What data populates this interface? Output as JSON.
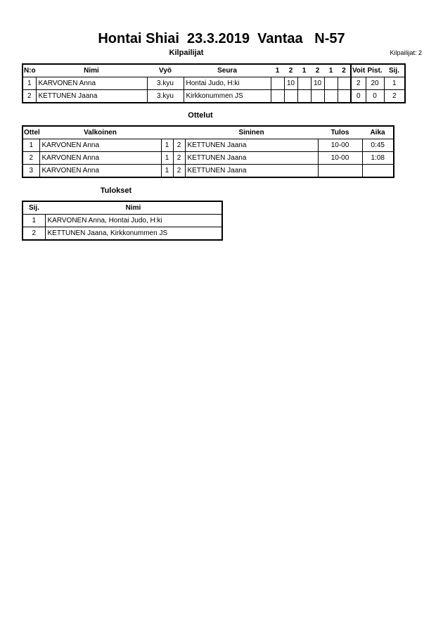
{
  "title": "Hontai Shiai  23.3.2019  Vantaa   N-57",
  "competitors": {
    "heading": "Kilpailijat",
    "count_label": "Kilpailijat: 2",
    "headers": [
      "N:o",
      "Nimi",
      "Vyö",
      "Seura",
      "1",
      "2",
      "1",
      "2",
      "1",
      "2",
      "Voit.",
      "Pist.",
      "Sij."
    ],
    "rows": [
      [
        "1",
        "KARVONEN Anna",
        "3.kyu",
        "Hontai Judo, H:ki",
        "",
        "10",
        "",
        "10",
        "",
        "",
        "2",
        "20",
        "1"
      ],
      [
        "2",
        "KETTUNEN Jaana",
        "3.kyu",
        "Kirkkonummen JS",
        "",
        "",
        "",
        "",
        "",
        "",
        "0",
        "0",
        "2"
      ]
    ]
  },
  "matches": {
    "heading": "Ottelut",
    "headers": [
      "Ottelu",
      "Valkoinen",
      "Sininen",
      "Tulos",
      "Aika"
    ],
    "rows": [
      [
        "1",
        "KARVONEN Anna",
        "1",
        "2",
        "KETTUNEN Jaana",
        "10-00",
        "0:45"
      ],
      [
        "2",
        "KARVONEN Anna",
        "1",
        "2",
        "KETTUNEN Jaana",
        "10-00",
        "1:08"
      ],
      [
        "3",
        "KARVONEN Anna",
        "1",
        "2",
        "KETTUNEN Jaana",
        "",
        ""
      ]
    ]
  },
  "results": {
    "heading": "Tulokset",
    "headers": [
      "Sij.",
      "Nimi"
    ],
    "rows": [
      [
        "1",
        "KARVONEN Anna, Hontai Judo, H:ki"
      ],
      [
        "2",
        "KETTUNEN Jaana, Kirkkonummen JS"
      ]
    ]
  }
}
